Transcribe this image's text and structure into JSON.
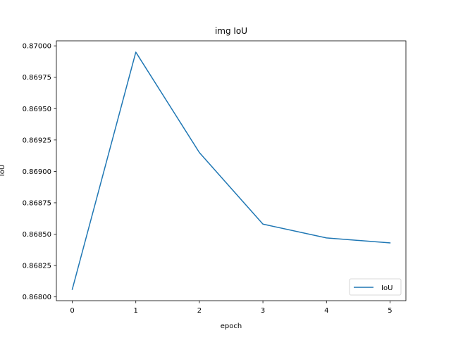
{
  "chart_data": {
    "type": "line",
    "title": "img IoU",
    "xlabel": "epoch",
    "ylabel": "IoU",
    "x": [
      0,
      1,
      2,
      3,
      4,
      5
    ],
    "series": [
      {
        "name": "IoU",
        "values": [
          0.86806,
          0.86995,
          0.86915,
          0.86858,
          0.86847,
          0.86843
        ]
      }
    ],
    "xlim": [
      -0.25,
      5.25
    ],
    "ylim": [
      0.86797,
      0.87004
    ],
    "xticks": [
      0,
      1,
      2,
      3,
      4,
      5
    ],
    "xtick_labels": [
      "0",
      "1",
      "2",
      "3",
      "4",
      "5"
    ],
    "yticks": [
      0.868,
      0.86825,
      0.8685,
      0.86875,
      0.869,
      0.86925,
      0.8695,
      0.86975,
      0.87
    ],
    "ytick_labels": [
      "0.86800",
      "0.86825",
      "0.86850",
      "0.86875",
      "0.86900",
      "0.86925",
      "0.86950",
      "0.86975",
      "0.87000"
    ],
    "grid": false,
    "legend_position": "lower-right",
    "colors": {
      "series": "#1f77b4",
      "axes": "#000000"
    }
  }
}
